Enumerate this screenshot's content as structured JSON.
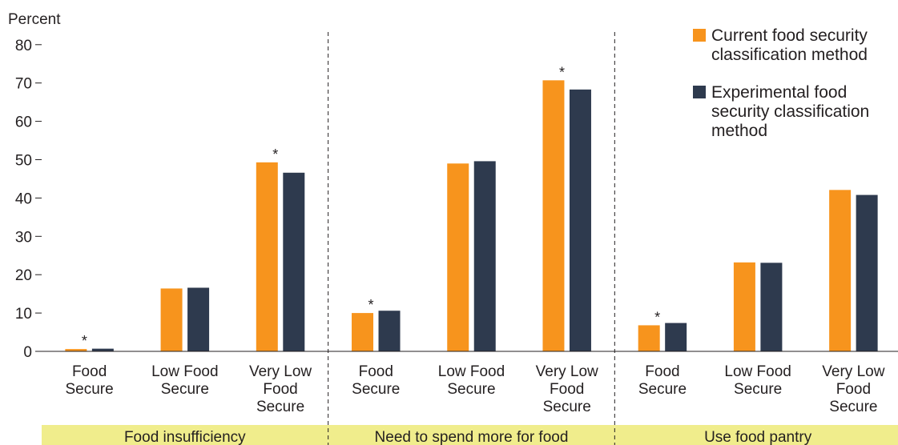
{
  "chart_data": {
    "type": "bar",
    "ylabel": "Percent",
    "ylim": [
      0,
      80
    ],
    "yticks": [
      "0",
      "10",
      "20",
      "30",
      "40",
      "50",
      "60",
      "70",
      "80"
    ],
    "grid": false,
    "legend_position": "top-right",
    "groups": [
      {
        "label": "Food insufficiency",
        "categories": [
          [
            "Food",
            "Secure"
          ],
          [
            "Low Food",
            "Secure"
          ],
          [
            "Very Low",
            "Food",
            "Secure"
          ]
        ]
      },
      {
        "label": "Need to spend more for food",
        "categories": [
          [
            "Food",
            "Secure"
          ],
          [
            "Low Food",
            "Secure"
          ],
          [
            "Very Low",
            "Food",
            "Secure"
          ]
        ]
      },
      {
        "label": "Use food pantry",
        "categories": [
          [
            "Food",
            "Secure"
          ],
          [
            "Low Food",
            "Secure"
          ],
          [
            "Very Low",
            "Food",
            "Secure"
          ]
        ]
      }
    ],
    "series": [
      {
        "name": "Current food security classification method",
        "legend_lines": [
          "Current food security",
          "classification method"
        ],
        "color": "#f7941d",
        "values": [
          0.6,
          16.4,
          49.3,
          10.0,
          49.0,
          70.7,
          6.8,
          23.2,
          42.1
        ]
      },
      {
        "name": "Experimental food security classification method",
        "legend_lines": [
          "Experimental food",
          "security classification",
          "method"
        ],
        "color": "#2e3a4e",
        "values": [
          0.7,
          16.6,
          46.6,
          10.6,
          49.6,
          68.3,
          7.4,
          23.1,
          40.8
        ]
      }
    ],
    "significance_marker": "*",
    "significant_bars": [
      0,
      2,
      3,
      5,
      6
    ],
    "group_label_background": "#f0ed8c"
  }
}
